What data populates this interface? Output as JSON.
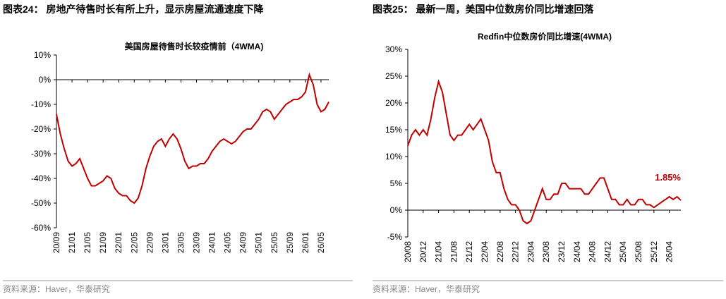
{
  "figures": [
    {
      "title": "图表24：  房地产待售时长有所上升，显示房屋流通速度下降",
      "source": "资料来源：Haver，华泰研究"
    },
    {
      "title": "图表25：  最新一周，美国中位数房价同比增速回落",
      "source": "资料来源：Haver，华泰研究"
    }
  ],
  "chart_data": [
    {
      "type": "line",
      "title": "美国房屋待售时长较疫情前（4WMA)",
      "categories": [
        "20/09",
        null,
        null,
        null,
        "21/01",
        null,
        null,
        null,
        "21/05",
        null,
        null,
        null,
        "21/09",
        null,
        null,
        null,
        "22/01",
        null,
        null,
        null,
        "22/05",
        null,
        null,
        null,
        "22/09",
        null,
        null,
        null,
        "23/01",
        null,
        null,
        null,
        "23/05",
        null,
        null,
        null,
        "23/09",
        null,
        null,
        null,
        "24/01",
        null,
        null,
        null,
        "24/05",
        null,
        null,
        null,
        "24/09",
        null,
        null,
        null,
        "25/01",
        null,
        null,
        null,
        "25/05",
        null,
        null,
        null,
        "25/09",
        null,
        null,
        null,
        "26/01",
        null,
        null,
        null,
        "26/05",
        null,
        null
      ],
      "series": [
        {
          "name": "美国房屋待售时长较疫情前",
          "color": "#c00000",
          "values": [
            -14,
            -22,
            -28,
            -33,
            -35,
            -34,
            -32,
            -36,
            -40,
            -43,
            -43,
            -42,
            -41,
            -39,
            -40,
            -44,
            -46,
            -47,
            -47,
            -49,
            -50,
            -48,
            -43,
            -36,
            -31,
            -27,
            -25,
            -24,
            -27,
            -24,
            -22,
            -24,
            -28,
            -33,
            -36,
            -35,
            -35,
            -34,
            -34,
            -32,
            -29,
            -27,
            -25,
            -24,
            -25,
            -26,
            -25,
            -23,
            -21,
            -20,
            -20,
            -18,
            -16,
            -13,
            -12,
            -13,
            -16,
            -14,
            -12,
            -10,
            -9,
            -8,
            -8,
            -7,
            -5,
            2,
            -2,
            -10,
            -13,
            -12,
            -9
          ]
        }
      ],
      "ylim": [
        -60,
        10
      ],
      "yticks": [
        {
          "value": -60,
          "label": "-60%"
        },
        {
          "value": -50,
          "label": "-50%"
        },
        {
          "value": -40,
          "label": "-40%"
        },
        {
          "value": -30,
          "label": "-30%"
        },
        {
          "value": -20,
          "label": "-20%"
        },
        {
          "value": -10,
          "label": "-10%"
        },
        {
          "value": 0,
          "label": "0%"
        },
        {
          "value": 10,
          "label": "10%"
        }
      ]
    },
    {
      "type": "line",
      "title": "Redfin中位数房价同比增速(4WMA)",
      "categories": [
        "20/08",
        null,
        null,
        null,
        "20/12",
        null,
        null,
        null,
        "21/04",
        null,
        null,
        null,
        "21/08",
        null,
        null,
        null,
        "21/12",
        null,
        null,
        null,
        "22/04",
        null,
        null,
        null,
        "22/08",
        null,
        null,
        null,
        "22/12",
        null,
        null,
        null,
        "23/04",
        null,
        null,
        null,
        "23/08",
        null,
        null,
        null,
        "23/12",
        null,
        null,
        null,
        "24/04",
        null,
        null,
        null,
        "24/08",
        null,
        null,
        null,
        "24/12",
        null,
        null,
        null,
        "25/04",
        null,
        null,
        null,
        "25/08",
        null,
        null,
        null,
        "25/12",
        null,
        null,
        null,
        "26/04",
        null,
        null,
        null
      ],
      "series": [
        {
          "name": "Redfin中位数房价同比增速",
          "color": "#c00000",
          "values": [
            12,
            14,
            15,
            14,
            15,
            14,
            17,
            21,
            24,
            22,
            18,
            14,
            13,
            14,
            14,
            15,
            16,
            15,
            16,
            17,
            15,
            13,
            9,
            7,
            7,
            4,
            2,
            1,
            1,
            0,
            -2,
            -2.5,
            -2,
            0,
            2,
            4,
            2,
            2,
            3,
            3,
            5,
            5,
            4,
            4,
            4,
            4,
            3,
            3,
            4,
            5,
            6,
            6,
            4,
            2,
            2,
            1,
            1,
            2,
            1,
            1,
            2,
            2,
            1,
            1,
            0.5,
            1,
            1.5,
            2,
            2.5,
            2,
            2.5,
            1.85
          ],
          "value_labels": [
            null,
            null,
            null,
            null,
            null,
            null,
            null,
            null,
            null,
            null,
            null,
            null,
            null,
            null,
            null,
            null,
            null,
            null,
            null,
            null,
            null,
            null,
            null,
            null,
            null,
            null,
            null,
            null,
            null,
            null,
            null,
            null,
            null,
            null,
            null,
            null,
            null,
            null,
            null,
            null,
            null,
            null,
            null,
            null,
            null,
            null,
            null,
            null,
            null,
            null,
            null,
            null,
            null,
            null,
            null,
            null,
            null,
            null,
            null,
            null,
            null,
            null,
            null,
            null,
            null,
            null,
            null,
            null,
            null,
            null,
            null,
            "1.85%"
          ]
        }
      ],
      "ylim": [
        -5,
        30
      ],
      "yticks": [
        {
          "value": -5,
          "label": "-5%"
        },
        {
          "value": 0,
          "label": "0%"
        },
        {
          "value": 5,
          "label": "5%"
        },
        {
          "value": 10,
          "label": "10%"
        },
        {
          "value": 15,
          "label": "15%"
        },
        {
          "value": 20,
          "label": "20%"
        },
        {
          "value": 25,
          "label": "25%"
        },
        {
          "value": 30,
          "label": "30%"
        }
      ]
    }
  ]
}
